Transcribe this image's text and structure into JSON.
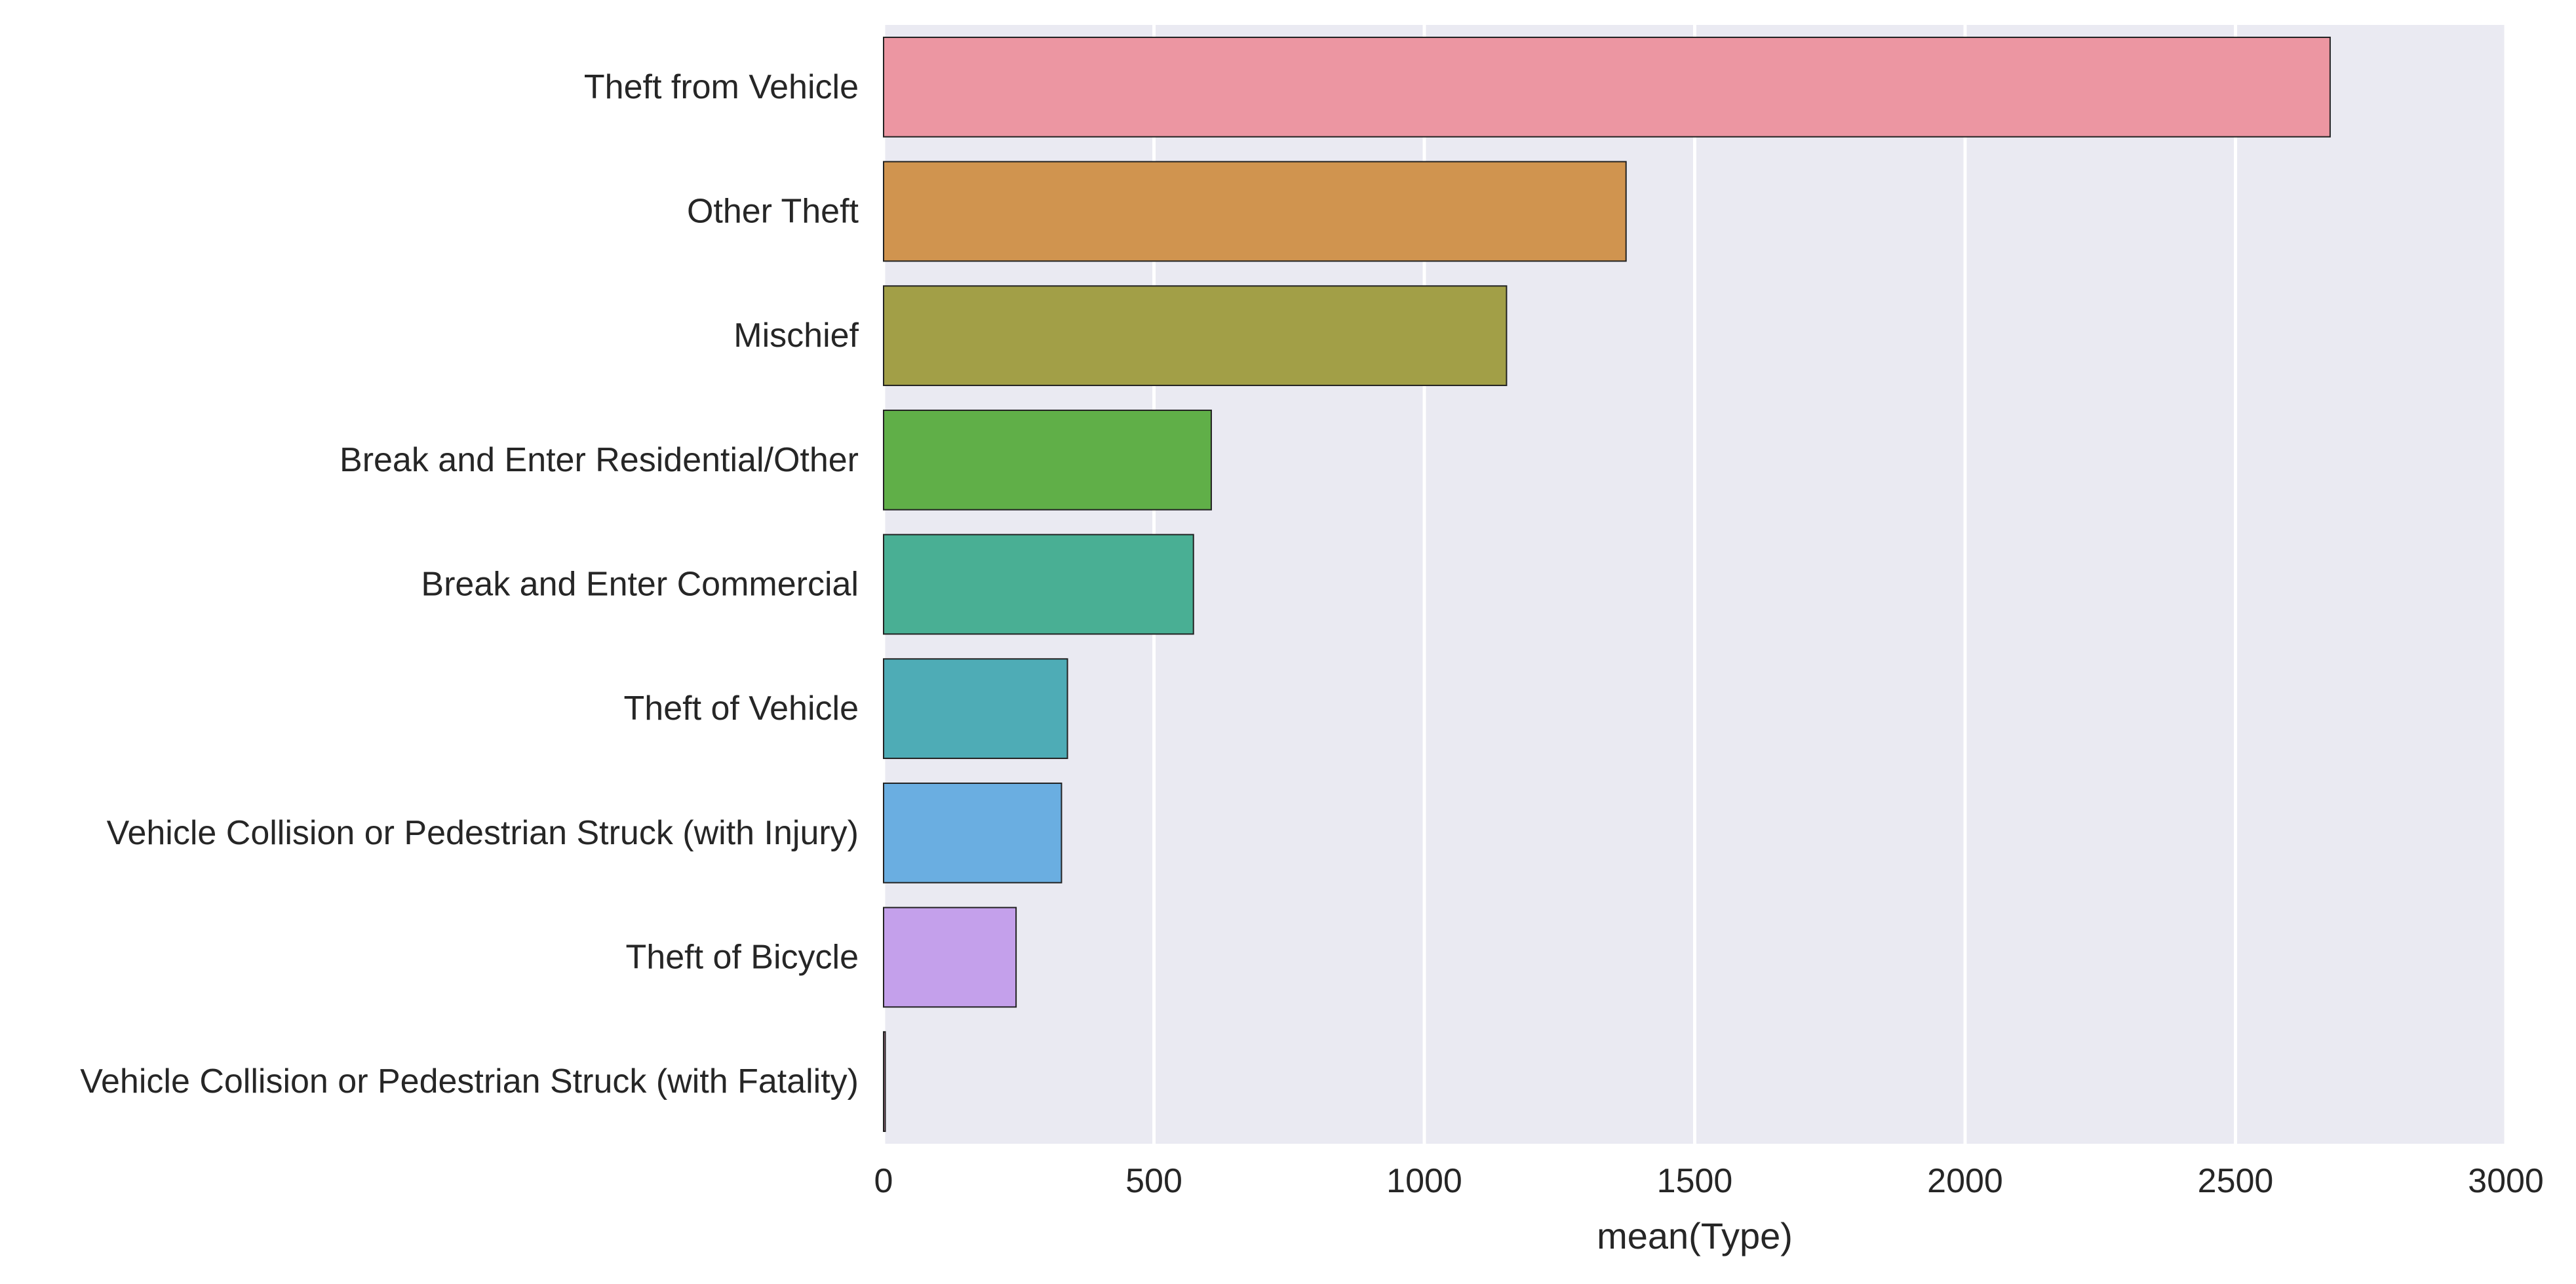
{
  "chart_data": {
    "type": "bar",
    "orientation": "horizontal",
    "categories": [
      "Theft from Vehicle",
      "Other Theft",
      "Mischief",
      "Break and Enter Residential/Other",
      "Break and Enter Commercial",
      "Theft of Vehicle",
      "Vehicle Collision or Pedestrian Struck (with Injury)",
      "Theft of Bicycle",
      "Vehicle Collision or Pedestrian Struck (with Fatality)"
    ],
    "values": [
      2675,
      1373,
      1152,
      606,
      573,
      340,
      329,
      245,
      3
    ],
    "colors": [
      "#ec96a2",
      "#d0944f",
      "#a29f47",
      "#60af48",
      "#49af94",
      "#4eacb6",
      "#6aaee1",
      "#c4a0eb",
      "#f5a0c7"
    ],
    "xlabel": "mean(Type)",
    "ylabel": "",
    "xlim": [
      0,
      3000
    ],
    "xticks": [
      0,
      500,
      1000,
      1500,
      2000,
      2500,
      3000
    ],
    "xtick_labels": [
      "0",
      "500",
      "1000",
      "1500",
      "2000",
      "2500",
      "3000"
    ],
    "grid": "vertical",
    "background": "#eaeaf2",
    "gridline_color": "#ffffff"
  }
}
